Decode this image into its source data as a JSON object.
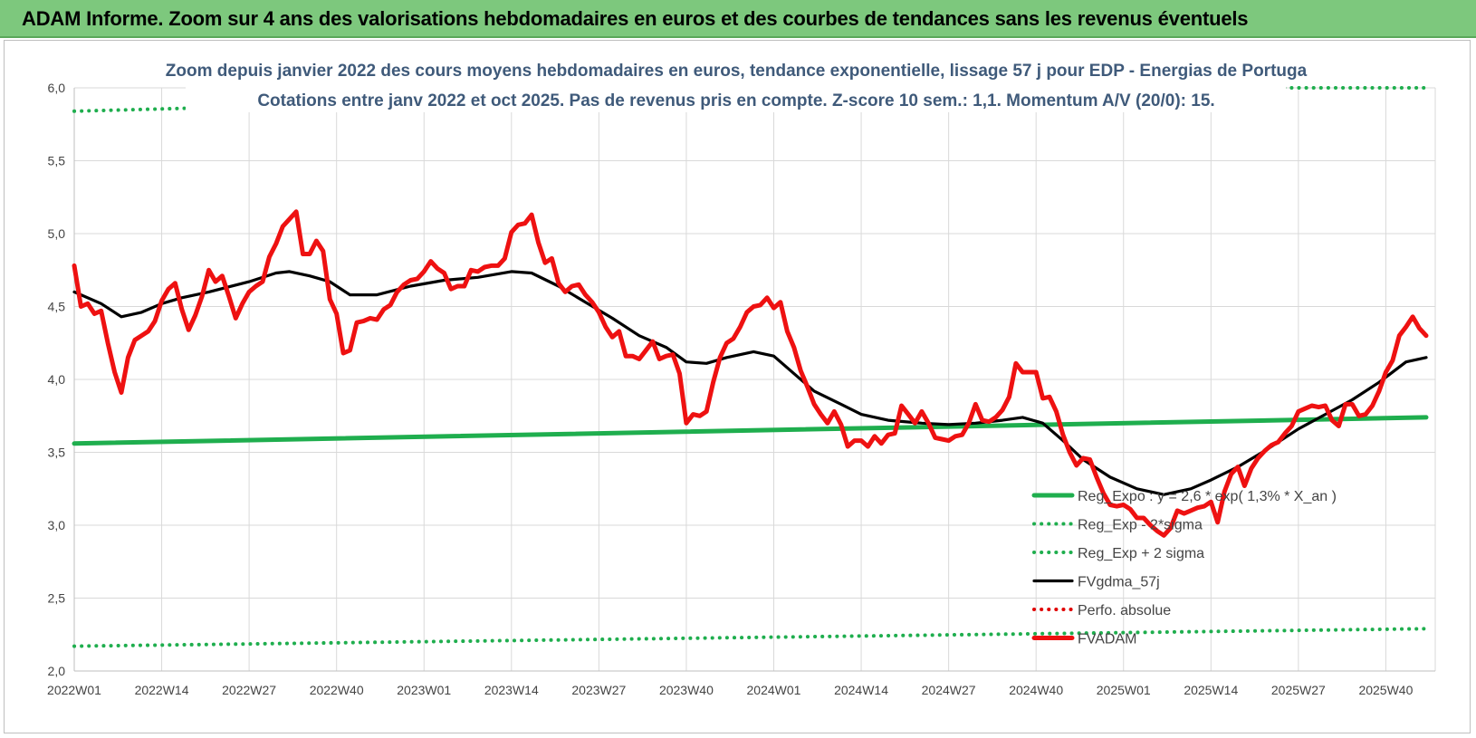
{
  "banner": {
    "title": "ADAM Informe. Zoom sur 4 ans des valorisations hebdomadaires en euros et des courbes de tendances sans les revenus éventuels"
  },
  "colors": {
    "banner_bg": "#7dc87d",
    "reg_expo": "#1fae4e",
    "sigma": "#1fae4e",
    "fvgdma": "#000000",
    "perfo": "#e00000",
    "fvadam": "#ee1111"
  },
  "chart_data": {
    "type": "line",
    "title": "Zoom depuis janvier 2022 des cours moyens hebdomadaires en euros, tendance exponentielle, lissage 57 j pour EDP - Energias de Portuga",
    "subtitle": "Cotations entre janv 2022 et oct 2025. Pas de revenus pris en compte. Z-score 10 sem.: 1,1. Momentum A/V (20/0): 15.",
    "xlabel": "",
    "ylabel": "",
    "ylim": [
      2.0,
      6.0
    ],
    "grid": true,
    "legend_position": "bottom-right",
    "y_ticks": [
      "2,0",
      "2,5",
      "3,0",
      "3,5",
      "4,0",
      "4,5",
      "5,0",
      "5,5",
      "6,0"
    ],
    "x_ticks": [
      "2022W01",
      "2022W14",
      "2022W27",
      "2022W40",
      "2023W01",
      "2023W14",
      "2023W27",
      "2023W40",
      "2024W01",
      "2024W14",
      "2024W27",
      "2024W40",
      "2025W01",
      "2025W14",
      "2025W27",
      "2025W40"
    ],
    "x_tick_weeks": [
      0,
      13,
      26,
      39,
      52,
      65,
      78,
      91,
      104,
      117,
      130,
      143,
      156,
      169,
      182,
      195
    ],
    "x_max_week": 201,
    "series": [
      {
        "name": "Reg_Expo : y = 2,6 * exp( 1,3% *  X_an )",
        "style": "solid-thick",
        "color": "#1fae4e",
        "points": [
          [
            0,
            3.56
          ],
          [
            201,
            3.74
          ]
        ]
      },
      {
        "name": "Reg_Exp - 2*sigma",
        "style": "dotted",
        "color": "#1fae4e",
        "points": [
          [
            0,
            2.17
          ],
          [
            201,
            2.29
          ]
        ]
      },
      {
        "name": "Reg_Exp + 2 sigma",
        "style": "dotted",
        "color": "#1fae4e",
        "points": [
          [
            0,
            5.84
          ],
          [
            17,
            5.86
          ],
          [
            180,
            6.0
          ],
          [
            201,
            6.0
          ]
        ]
      },
      {
        "name": "FVgdma_57j",
        "style": "solid",
        "color": "#000000",
        "points": [
          [
            0,
            4.6
          ],
          [
            4,
            4.52
          ],
          [
            7,
            4.43
          ],
          [
            10,
            4.46
          ],
          [
            13,
            4.52
          ],
          [
            16,
            4.56
          ],
          [
            20,
            4.6
          ],
          [
            26,
            4.67
          ],
          [
            30,
            4.73
          ],
          [
            32,
            4.74
          ],
          [
            35,
            4.71
          ],
          [
            38,
            4.67
          ],
          [
            41,
            4.58
          ],
          [
            45,
            4.58
          ],
          [
            50,
            4.64
          ],
          [
            55,
            4.68
          ],
          [
            60,
            4.7
          ],
          [
            65,
            4.74
          ],
          [
            68,
            4.73
          ],
          [
            72,
            4.64
          ],
          [
            76,
            4.53
          ],
          [
            80,
            4.42
          ],
          [
            84,
            4.3
          ],
          [
            88,
            4.22
          ],
          [
            91,
            4.12
          ],
          [
            94,
            4.11
          ],
          [
            97,
            4.15
          ],
          [
            101,
            4.19
          ],
          [
            104,
            4.16
          ],
          [
            107,
            4.04
          ],
          [
            110,
            3.92
          ],
          [
            114,
            3.83
          ],
          [
            117,
            3.76
          ],
          [
            121,
            3.72
          ],
          [
            126,
            3.7
          ],
          [
            130,
            3.69
          ],
          [
            134,
            3.7
          ],
          [
            138,
            3.72
          ],
          [
            141,
            3.74
          ],
          [
            144,
            3.7
          ],
          [
            147,
            3.58
          ],
          [
            150,
            3.45
          ],
          [
            154,
            3.33
          ],
          [
            158,
            3.25
          ],
          [
            162,
            3.21
          ],
          [
            166,
            3.25
          ],
          [
            169,
            3.31
          ],
          [
            173,
            3.4
          ],
          [
            177,
            3.51
          ],
          [
            182,
            3.66
          ],
          [
            186,
            3.76
          ],
          [
            190,
            3.86
          ],
          [
            194,
            3.98
          ],
          [
            198,
            4.12
          ],
          [
            201,
            4.15
          ]
        ]
      },
      {
        "name": "Perfo. absolue",
        "style": "dotted",
        "color": "#e00000",
        "points": []
      },
      {
        "name": "FVADAM",
        "style": "solid-thick",
        "color": "#ee1111",
        "points": [
          [
            0,
            4.78
          ],
          [
            1,
            4.5
          ],
          [
            2,
            4.52
          ],
          [
            3,
            4.45
          ],
          [
            4,
            4.47
          ],
          [
            5,
            4.25
          ],
          [
            6,
            4.05
          ],
          [
            7,
            3.91
          ],
          [
            8,
            4.15
          ],
          [
            9,
            4.27
          ],
          [
            10,
            4.3
          ],
          [
            11,
            4.33
          ],
          [
            12,
            4.4
          ],
          [
            13,
            4.54
          ],
          [
            14,
            4.62
          ],
          [
            15,
            4.66
          ],
          [
            16,
            4.48
          ],
          [
            17,
            4.34
          ],
          [
            18,
            4.44
          ],
          [
            19,
            4.57
          ],
          [
            20,
            4.75
          ],
          [
            21,
            4.67
          ],
          [
            22,
            4.71
          ],
          [
            23,
            4.57
          ],
          [
            24,
            4.42
          ],
          [
            25,
            4.52
          ],
          [
            26,
            4.6
          ],
          [
            27,
            4.64
          ],
          [
            28,
            4.67
          ],
          [
            29,
            4.84
          ],
          [
            30,
            4.93
          ],
          [
            31,
            5.05
          ],
          [
            32,
            5.1
          ],
          [
            33,
            5.15
          ],
          [
            34,
            4.86
          ],
          [
            35,
            4.86
          ],
          [
            36,
            4.95
          ],
          [
            37,
            4.88
          ],
          [
            38,
            4.55
          ],
          [
            39,
            4.45
          ],
          [
            40,
            4.18
          ],
          [
            41,
            4.2
          ],
          [
            42,
            4.39
          ],
          [
            43,
            4.4
          ],
          [
            44,
            4.42
          ],
          [
            45,
            4.41
          ],
          [
            46,
            4.48
          ],
          [
            47,
            4.51
          ],
          [
            48,
            4.6
          ],
          [
            49,
            4.65
          ],
          [
            50,
            4.68
          ],
          [
            51,
            4.69
          ],
          [
            52,
            4.74
          ],
          [
            53,
            4.81
          ],
          [
            54,
            4.76
          ],
          [
            55,
            4.73
          ],
          [
            56,
            4.62
          ],
          [
            57,
            4.64
          ],
          [
            58,
            4.64
          ],
          [
            59,
            4.75
          ],
          [
            60,
            4.74
          ],
          [
            61,
            4.77
          ],
          [
            62,
            4.78
          ],
          [
            63,
            4.78
          ],
          [
            64,
            4.83
          ],
          [
            65,
            5.01
          ],
          [
            66,
            5.06
          ],
          [
            67,
            5.07
          ],
          [
            68,
            5.13
          ],
          [
            69,
            4.94
          ],
          [
            70,
            4.8
          ],
          [
            71,
            4.83
          ],
          [
            72,
            4.66
          ],
          [
            73,
            4.6
          ],
          [
            74,
            4.64
          ],
          [
            75,
            4.65
          ],
          [
            76,
            4.58
          ],
          [
            77,
            4.53
          ],
          [
            78,
            4.46
          ],
          [
            79,
            4.36
          ],
          [
            80,
            4.29
          ],
          [
            81,
            4.33
          ],
          [
            82,
            4.16
          ],
          [
            83,
            4.16
          ],
          [
            84,
            4.14
          ],
          [
            85,
            4.2
          ],
          [
            86,
            4.26
          ],
          [
            87,
            4.14
          ],
          [
            88,
            4.16
          ],
          [
            89,
            4.17
          ],
          [
            90,
            4.04
          ],
          [
            91,
            3.7
          ],
          [
            92,
            3.76
          ],
          [
            93,
            3.75
          ],
          [
            94,
            3.78
          ],
          [
            95,
            3.98
          ],
          [
            96,
            4.15
          ],
          [
            97,
            4.25
          ],
          [
            98,
            4.28
          ],
          [
            99,
            4.36
          ],
          [
            100,
            4.46
          ],
          [
            101,
            4.5
          ],
          [
            102,
            4.51
          ],
          [
            103,
            4.56
          ],
          [
            104,
            4.49
          ],
          [
            105,
            4.53
          ],
          [
            106,
            4.33
          ],
          [
            107,
            4.22
          ],
          [
            108,
            4.06
          ],
          [
            109,
            3.95
          ],
          [
            110,
            3.83
          ],
          [
            111,
            3.76
          ],
          [
            112,
            3.7
          ],
          [
            113,
            3.78
          ],
          [
            114,
            3.69
          ],
          [
            115,
            3.54
          ],
          [
            116,
            3.58
          ],
          [
            117,
            3.58
          ],
          [
            118,
            3.54
          ],
          [
            119,
            3.61
          ],
          [
            120,
            3.56
          ],
          [
            121,
            3.62
          ],
          [
            122,
            3.63
          ],
          [
            123,
            3.82
          ],
          [
            124,
            3.76
          ],
          [
            125,
            3.7
          ],
          [
            126,
            3.78
          ],
          [
            127,
            3.7
          ],
          [
            128,
            3.6
          ],
          [
            129,
            3.59
          ],
          [
            130,
            3.58
          ],
          [
            131,
            3.61
          ],
          [
            132,
            3.62
          ],
          [
            133,
            3.7
          ],
          [
            134,
            3.83
          ],
          [
            135,
            3.72
          ],
          [
            136,
            3.71
          ],
          [
            137,
            3.74
          ],
          [
            138,
            3.79
          ],
          [
            139,
            3.88
          ],
          [
            140,
            4.11
          ],
          [
            141,
            4.05
          ],
          [
            142,
            4.05
          ],
          [
            143,
            4.05
          ],
          [
            144,
            3.87
          ],
          [
            145,
            3.88
          ],
          [
            146,
            3.78
          ],
          [
            147,
            3.62
          ],
          [
            148,
            3.5
          ],
          [
            149,
            3.41
          ],
          [
            150,
            3.46
          ],
          [
            151,
            3.45
          ],
          [
            152,
            3.33
          ],
          [
            153,
            3.22
          ],
          [
            154,
            3.14
          ],
          [
            155,
            3.13
          ],
          [
            156,
            3.14
          ],
          [
            157,
            3.11
          ],
          [
            158,
            3.05
          ],
          [
            159,
            3.05
          ],
          [
            160,
            3.0
          ],
          [
            161,
            2.96
          ],
          [
            162,
            2.93
          ],
          [
            163,
            2.98
          ],
          [
            164,
            3.1
          ],
          [
            165,
            3.08
          ],
          [
            166,
            3.1
          ],
          [
            167,
            3.12
          ],
          [
            168,
            3.13
          ],
          [
            169,
            3.16
          ],
          [
            170,
            3.02
          ],
          [
            171,
            3.23
          ],
          [
            172,
            3.35
          ],
          [
            173,
            3.4
          ],
          [
            174,
            3.27
          ],
          [
            175,
            3.39
          ],
          [
            176,
            3.46
          ],
          [
            177,
            3.51
          ],
          [
            178,
            3.55
          ],
          [
            179,
            3.57
          ],
          [
            180,
            3.63
          ],
          [
            181,
            3.68
          ],
          [
            182,
            3.78
          ],
          [
            183,
            3.8
          ],
          [
            184,
            3.82
          ],
          [
            185,
            3.81
          ],
          [
            186,
            3.82
          ],
          [
            187,
            3.72
          ],
          [
            188,
            3.68
          ],
          [
            189,
            3.83
          ],
          [
            190,
            3.83
          ],
          [
            191,
            3.75
          ],
          [
            192,
            3.76
          ],
          [
            193,
            3.82
          ],
          [
            194,
            3.92
          ],
          [
            195,
            4.05
          ],
          [
            196,
            4.13
          ],
          [
            197,
            4.3
          ],
          [
            198,
            4.36
          ],
          [
            199,
            4.43
          ],
          [
            200,
            4.35
          ],
          [
            201,
            4.3
          ]
        ]
      }
    ]
  }
}
